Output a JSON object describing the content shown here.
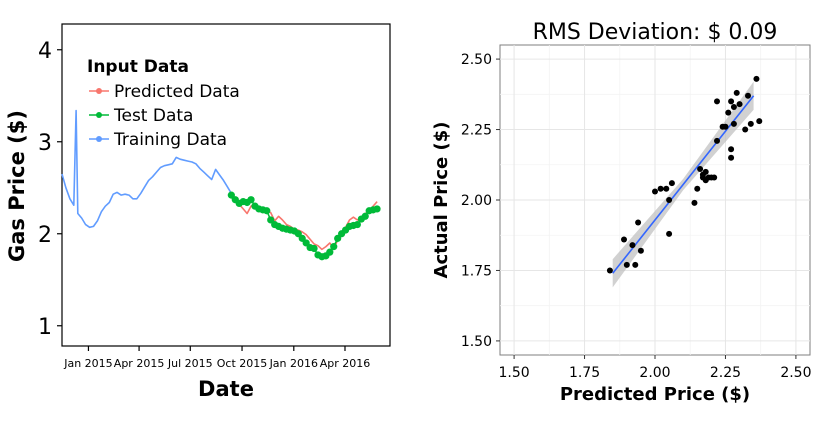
{
  "chart_data": [
    {
      "type": "line",
      "title": "",
      "xlabel": "Date",
      "ylabel": "Gas Price ($)",
      "x_range": [
        "2014-11-15",
        "2016-06-20"
      ],
      "ylim": [
        0.78,
        4.28
      ],
      "grid": false,
      "x_ticks": [
        {
          "date": "2015-01-01",
          "label": "Jan 2015"
        },
        {
          "date": "2015-04-01",
          "label": "Apr 2015"
        },
        {
          "date": "2015-07-01",
          "label": "Jul 2015"
        },
        {
          "date": "2015-10-01",
          "label": "Oct 2015"
        },
        {
          "date": "2016-01-01",
          "label": "Jan 2016"
        },
        {
          "date": "2016-04-01",
          "label": "Apr 2016"
        }
      ],
      "y_ticks": [
        1,
        2,
        3,
        4
      ],
      "legend": {
        "title": "Input Data",
        "position": "top-left",
        "entries": [
          "Predicted Data",
          "Test Data",
          "Training Data"
        ]
      },
      "colors": {
        "predicted": "#f8766d",
        "test": "#00ba38",
        "training": "#619cff"
      },
      "series": [
        {
          "name": "Training Data",
          "style": "line",
          "x": [
            "2014-11-15",
            "2014-11-22",
            "2014-11-29",
            "2014-12-06",
            "2014-12-10",
            "2014-12-13",
            "2014-12-20",
            "2014-12-27",
            "2015-01-03",
            "2015-01-10",
            "2015-01-17",
            "2015-01-24",
            "2015-01-31",
            "2015-02-07",
            "2015-02-14",
            "2015-02-21",
            "2015-02-28",
            "2015-03-07",
            "2015-03-14",
            "2015-03-21",
            "2015-03-28",
            "2015-04-04",
            "2015-04-11",
            "2015-04-18",
            "2015-04-25",
            "2015-05-02",
            "2015-05-09",
            "2015-05-16",
            "2015-05-23",
            "2015-05-30",
            "2015-06-06",
            "2015-06-13",
            "2015-06-20",
            "2015-06-27",
            "2015-07-04",
            "2015-07-11",
            "2015-07-18",
            "2015-07-25",
            "2015-08-01",
            "2015-08-08",
            "2015-08-15",
            "2015-08-22",
            "2015-08-29",
            "2015-09-05",
            "2015-09-12"
          ],
          "y": [
            2.65,
            2.5,
            2.38,
            2.31,
            3.34,
            2.22,
            2.17,
            2.1,
            2.07,
            2.08,
            2.14,
            2.24,
            2.3,
            2.34,
            2.43,
            2.45,
            2.42,
            2.43,
            2.42,
            2.38,
            2.38,
            2.44,
            2.51,
            2.58,
            2.62,
            2.67,
            2.72,
            2.74,
            2.75,
            2.76,
            2.83,
            2.81,
            2.8,
            2.79,
            2.78,
            2.76,
            2.71,
            2.67,
            2.63,
            2.59,
            2.7,
            2.64,
            2.58,
            2.51,
            2.44
          ]
        },
        {
          "name": "Predicted Data",
          "style": "line",
          "x": [
            "2015-09-12",
            "2015-09-19",
            "2015-09-26",
            "2015-10-03",
            "2015-10-10",
            "2015-10-17",
            "2015-10-24",
            "2015-10-31",
            "2015-11-07",
            "2015-11-14",
            "2015-11-21",
            "2015-11-28",
            "2015-12-05",
            "2015-12-12",
            "2015-12-19",
            "2015-12-26",
            "2016-01-02",
            "2016-01-09",
            "2016-01-16",
            "2016-01-23",
            "2016-01-30",
            "2016-02-06",
            "2016-02-13",
            "2016-02-20",
            "2016-02-27",
            "2016-03-05",
            "2016-03-12",
            "2016-03-19",
            "2016-03-26",
            "2016-04-02",
            "2016-04-09",
            "2016-04-16",
            "2016-04-23",
            "2016-04-30",
            "2016-05-07",
            "2016-05-14",
            "2016-05-21",
            "2016-05-28"
          ],
          "y": [
            2.41,
            2.35,
            2.32,
            2.27,
            2.22,
            2.3,
            2.33,
            2.27,
            2.28,
            2.25,
            2.23,
            2.14,
            2.19,
            2.15,
            2.1,
            2.08,
            2.05,
            2.04,
            2.02,
            1.99,
            1.94,
            1.89,
            1.87,
            1.83,
            1.86,
            1.9,
            1.84,
            1.93,
            2.0,
            2.07,
            2.15,
            2.18,
            2.15,
            2.17,
            2.22,
            2.24,
            2.3,
            2.35
          ]
        },
        {
          "name": "Test Data",
          "style": "line+points",
          "x": [
            "2015-09-12",
            "2015-09-19",
            "2015-09-26",
            "2015-10-03",
            "2015-10-10",
            "2015-10-17",
            "2015-10-24",
            "2015-10-31",
            "2015-11-07",
            "2015-11-14",
            "2015-11-21",
            "2015-11-28",
            "2015-12-05",
            "2015-12-12",
            "2015-12-19",
            "2015-12-26",
            "2016-01-02",
            "2016-01-09",
            "2016-01-16",
            "2016-01-23",
            "2016-01-30",
            "2016-02-06",
            "2016-02-13",
            "2016-02-20",
            "2016-02-27",
            "2016-03-05",
            "2016-03-12",
            "2016-03-19",
            "2016-03-26",
            "2016-04-02",
            "2016-04-09",
            "2016-04-16",
            "2016-04-23",
            "2016-04-30",
            "2016-05-07",
            "2016-05-14",
            "2016-05-21",
            "2016-05-28"
          ],
          "y": [
            2.42,
            2.37,
            2.33,
            2.35,
            2.34,
            2.37,
            2.3,
            2.27,
            2.26,
            2.25,
            2.15,
            2.1,
            2.08,
            2.06,
            2.05,
            2.04,
            2.03,
            2.0,
            1.95,
            1.9,
            1.85,
            1.84,
            1.77,
            1.75,
            1.76,
            1.8,
            1.86,
            1.95,
            2.0,
            2.04,
            2.08,
            2.09,
            2.1,
            2.16,
            2.19,
            2.25,
            2.26,
            2.27
          ]
        }
      ]
    },
    {
      "type": "scatter",
      "title": "RMS Deviation: $ 0.09",
      "xlabel": "Predicted Price ($)",
      "ylabel": "Actual Price ($)",
      "xlim": [
        1.45,
        2.55
      ],
      "ylim": [
        1.45,
        2.55
      ],
      "x_ticks": [
        1.5,
        1.75,
        2.0,
        2.25,
        2.5
      ],
      "y_ticks": [
        1.5,
        1.75,
        2.0,
        2.25,
        2.5
      ],
      "x_tick_labels": [
        "1.50",
        "1.75",
        "2.00",
        "2.25",
        "2.50"
      ],
      "y_tick_labels": [
        "1.50",
        "1.75",
        "2.00",
        "2.25",
        "2.50"
      ],
      "grid": true,
      "colors": {
        "points": "#000000",
        "fit_line": "#3366ff",
        "band": "#bdbdbd"
      },
      "fit": {
        "x": [
          1.85,
          2.35
        ],
        "y": [
          1.74,
          2.37
        ],
        "band_half_width_low": 0.05,
        "band_half_width_high": 0.05
      },
      "points": [
        {
          "x": 1.84,
          "y": 1.75
        },
        {
          "x": 1.89,
          "y": 1.86
        },
        {
          "x": 1.9,
          "y": 1.77
        },
        {
          "x": 1.92,
          "y": 1.84
        },
        {
          "x": 1.93,
          "y": 1.77
        },
        {
          "x": 1.94,
          "y": 1.92
        },
        {
          "x": 1.95,
          "y": 1.82
        },
        {
          "x": 2.0,
          "y": 2.03
        },
        {
          "x": 2.02,
          "y": 2.04
        },
        {
          "x": 2.04,
          "y": 2.04
        },
        {
          "x": 2.05,
          "y": 1.88
        },
        {
          "x": 2.05,
          "y": 2.0
        },
        {
          "x": 2.06,
          "y": 2.06
        },
        {
          "x": 2.15,
          "y": 2.04
        },
        {
          "x": 2.14,
          "y": 1.99
        },
        {
          "x": 2.16,
          "y": 2.11
        },
        {
          "x": 2.17,
          "y": 2.08
        },
        {
          "x": 2.17,
          "y": 2.09
        },
        {
          "x": 2.18,
          "y": 2.1
        },
        {
          "x": 2.18,
          "y": 2.07
        },
        {
          "x": 2.19,
          "y": 2.08
        },
        {
          "x": 2.2,
          "y": 2.08
        },
        {
          "x": 2.21,
          "y": 2.08
        },
        {
          "x": 2.22,
          "y": 2.21
        },
        {
          "x": 2.22,
          "y": 2.35
        },
        {
          "x": 2.24,
          "y": 2.26
        },
        {
          "x": 2.25,
          "y": 2.26
        },
        {
          "x": 2.26,
          "y": 2.31
        },
        {
          "x": 2.27,
          "y": 2.15
        },
        {
          "x": 2.27,
          "y": 2.18
        },
        {
          "x": 2.27,
          "y": 2.35
        },
        {
          "x": 2.28,
          "y": 2.27
        },
        {
          "x": 2.28,
          "y": 2.33
        },
        {
          "x": 2.29,
          "y": 2.38
        },
        {
          "x": 2.3,
          "y": 2.34
        },
        {
          "x": 2.32,
          "y": 2.25
        },
        {
          "x": 2.33,
          "y": 2.37
        },
        {
          "x": 2.34,
          "y": 2.27
        },
        {
          "x": 2.36,
          "y": 2.43
        },
        {
          "x": 2.37,
          "y": 2.28
        }
      ]
    }
  ]
}
